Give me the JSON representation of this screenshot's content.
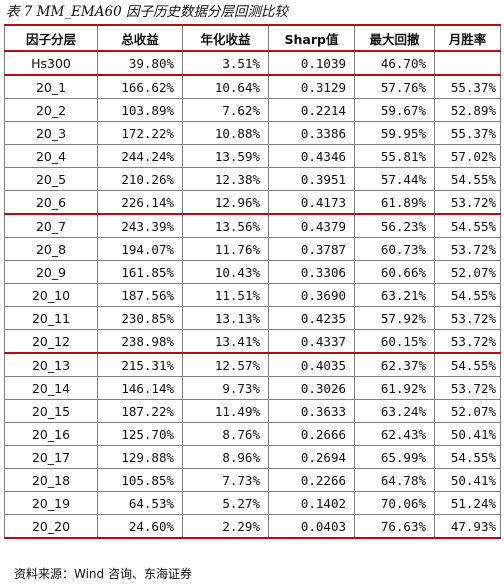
{
  "title": "表 7 MM_EMA60 因子历史数据分层回测比较",
  "headers": [
    "因子分层",
    "总收益",
    "年化收益",
    "Sharp值",
    "最大回撤",
    "月胜率"
  ],
  "rows": [
    [
      "Hs300",
      "39.80%",
      "3.51%",
      "0.1039",
      "46.70%",
      ""
    ],
    [
      "20_1",
      "166.62%",
      "10.64%",
      "0.3129",
      "57.76%",
      "55.37%"
    ],
    [
      "20_2",
      "103.89%",
      "7.62%",
      "0.2214",
      "59.67%",
      "52.89%"
    ],
    [
      "20_3",
      "172.22%",
      "10.88%",
      "0.3386",
      "59.95%",
      "55.37%"
    ],
    [
      "20_4",
      "244.24%",
      "13.59%",
      "0.4346",
      "55.81%",
      "57.02%"
    ],
    [
      "20_5",
      "210.26%",
      "12.38%",
      "0.3951",
      "57.44%",
      "54.55%"
    ],
    [
      "20_6",
      "226.14%",
      "12.96%",
      "0.4173",
      "61.89%",
      "53.72%"
    ],
    [
      "20_7",
      "243.39%",
      "13.56%",
      "0.4379",
      "56.23%",
      "54.55%"
    ],
    [
      "20_8",
      "194.07%",
      "11.76%",
      "0.3787",
      "60.73%",
      "53.72%"
    ],
    [
      "20_9",
      "161.85%",
      "10.43%",
      "0.3306",
      "60.66%",
      "52.07%"
    ],
    [
      "20_10",
      "187.56%",
      "11.51%",
      "0.3690",
      "63.21%",
      "54.55%"
    ],
    [
      "20_11",
      "230.85%",
      "13.13%",
      "0.4235",
      "57.92%",
      "53.72%"
    ],
    [
      "20_12",
      "238.98%",
      "13.41%",
      "0.4337",
      "60.15%",
      "53.72%"
    ],
    [
      "20_13",
      "215.31%",
      "12.57%",
      "0.4035",
      "62.37%",
      "54.55%"
    ],
    [
      "20_14",
      "146.14%",
      "9.73%",
      "0.3026",
      "61.92%",
      "53.72%"
    ],
    [
      "20_15",
      "187.22%",
      "11.49%",
      "0.3633",
      "63.24%",
      "52.07%"
    ],
    [
      "20_16",
      "125.70%",
      "8.76%",
      "0.2666",
      "62.43%",
      "50.41%"
    ],
    [
      "20_17",
      "129.88%",
      "8.96%",
      "0.2694",
      "65.99%",
      "54.55%"
    ],
    [
      "20_18",
      "105.85%",
      "7.73%",
      "0.2266",
      "64.78%",
      "50.41%"
    ],
    [
      "20_19",
      "64.53%",
      "5.27%",
      "0.1402",
      "70.06%",
      "51.24%"
    ],
    [
      "20_20",
      "24.60%",
      "2.29%",
      "0.0403",
      "76.63%",
      "47.93%"
    ]
  ],
  "source": "资料来源：Wind 咨询、东海证券",
  "colors": {
    "rule": "#b20e1a",
    "grid": "#7f7f7f"
  }
}
